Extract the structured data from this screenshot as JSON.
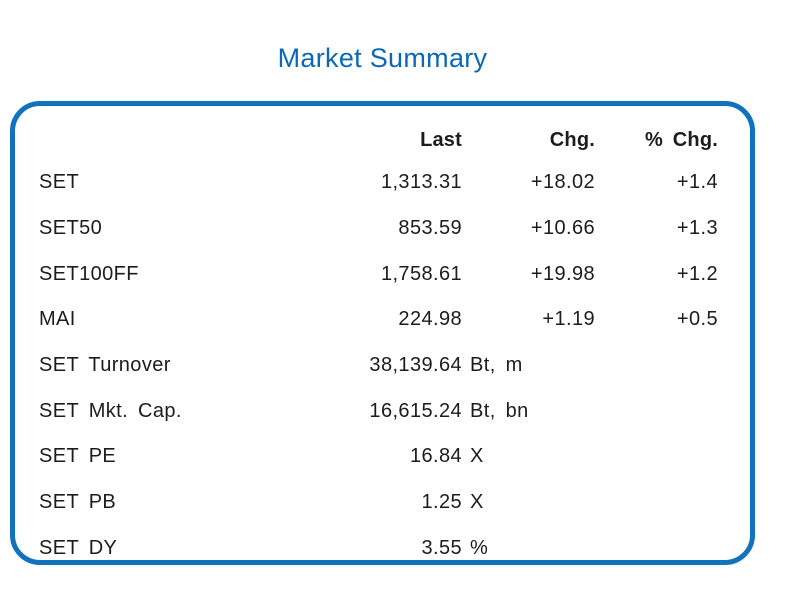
{
  "title": "Market Summary",
  "colors": {
    "accent_border_blue": "#1173bd",
    "title_blue": "#0a68b4",
    "text": "#1c1c1c"
  },
  "table": {
    "headers": {
      "label": "",
      "last": "Last",
      "chg": "Chg.",
      "pchg": "% Chg."
    },
    "rows": [
      {
        "label": "SET",
        "last": "1,313.31",
        "unit": "",
        "chg": "+18.02",
        "pchg": "+1.4"
      },
      {
        "label": "SET50",
        "last": "853.59",
        "unit": "",
        "chg": "+10.66",
        "pchg": "+1.3"
      },
      {
        "label": "SET100FF",
        "last": "1,758.61",
        "unit": "",
        "chg": "+19.98",
        "pchg": "+1.2"
      },
      {
        "label": "MAI",
        "last": "224.98",
        "unit": "",
        "chg": "+1.19",
        "pchg": "+0.5"
      },
      {
        "label": "SET Turnover",
        "last": "38,139.64",
        "unit": "Bt, m",
        "chg": "",
        "pchg": ""
      },
      {
        "label": "SET Mkt. Cap.",
        "last": "16,615.24",
        "unit": "Bt, bn",
        "chg": "",
        "pchg": ""
      },
      {
        "label": "SET PE",
        "last": "16.84",
        "unit": "X",
        "chg": "",
        "pchg": ""
      },
      {
        "label": "SET PB",
        "last": "1.25",
        "unit": "X",
        "chg": "",
        "pchg": ""
      },
      {
        "label": "SET DY",
        "last": "3.55",
        "unit": "%",
        "chg": "",
        "pchg": ""
      }
    ]
  },
  "chart_data": {
    "type": "table",
    "title": "Market Summary",
    "columns": [
      "",
      "Last",
      "Chg.",
      "% Chg."
    ],
    "rows": [
      [
        "SET",
        "1,313.31",
        "+18.02",
        "+1.4"
      ],
      [
        "SET50",
        "853.59",
        "+10.66",
        "+1.3"
      ],
      [
        "SET100FF",
        "1,758.61",
        "+19.98",
        "+1.2"
      ],
      [
        "MAI",
        "224.98",
        "+1.19",
        "+0.5"
      ],
      [
        "SET Turnover",
        "38,139.64 Bt, m",
        "",
        ""
      ],
      [
        "SET Mkt. Cap.",
        "16,615.24 Bt, bn",
        "",
        ""
      ],
      [
        "SET PE",
        "16.84 X",
        "",
        ""
      ],
      [
        "SET PB",
        "1.25 X",
        "",
        ""
      ],
      [
        "SET DY",
        "3.55 %",
        "",
        ""
      ]
    ],
    "layout": {
      "grid": false,
      "border": "rounded blue box",
      "value_alignment": "right"
    }
  }
}
